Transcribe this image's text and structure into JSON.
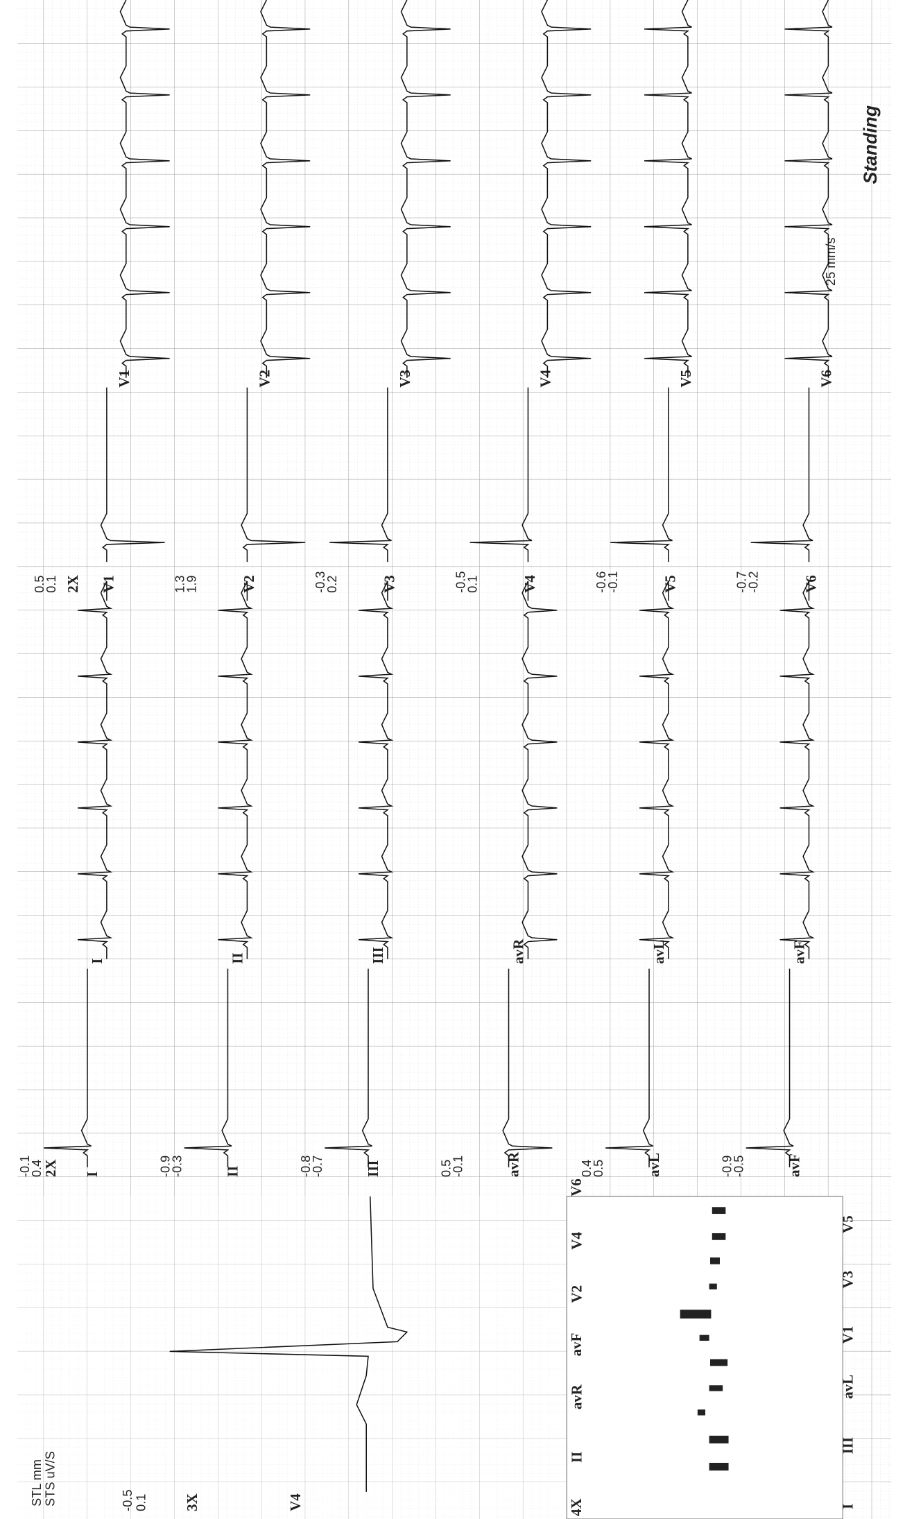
{
  "header": {
    "speed": "25 mm/s",
    "condition": "Standing"
  },
  "summary": {
    "stl_label": "STL mm",
    "sts_label": "STS uV/S",
    "stl": -0.5,
    "sts": 0.1,
    "gain": "3X",
    "lead": "V4"
  },
  "limb_leads": [
    {
      "stl": -0.1,
      "sts": 0.4,
      "gain": "2X",
      "name": "I"
    },
    {
      "stl": -0.9,
      "sts": -0.3,
      "name": "II"
    },
    {
      "stl": -0.8,
      "sts": -0.7,
      "name": "III"
    },
    {
      "stl": 0.5,
      "sts": -0.1,
      "name": "avR"
    },
    {
      "stl": 0.4,
      "sts": 0.5,
      "name": "avL"
    },
    {
      "stl": -0.9,
      "sts": -0.5,
      "name": "avF"
    }
  ],
  "chest_leads": [
    {
      "stl": 0.5,
      "sts": 0.1,
      "gain": "2X",
      "name": "V1"
    },
    {
      "stl": 1.3,
      "sts": 1.9,
      "name": "V2"
    },
    {
      "stl": -0.3,
      "sts": 0.2,
      "name": "V3"
    },
    {
      "stl": -0.5,
      "sts": 0.1,
      "name": "V4"
    },
    {
      "stl": -0.6,
      "sts": -0.1,
      "name": "V5"
    },
    {
      "stl": -0.7,
      "sts": -0.2,
      "name": "V6"
    }
  ],
  "bar_chart": {
    "gain": "4X",
    "top_labels": [
      "II",
      "avR",
      "avF",
      "V2",
      "V4",
      "V6"
    ],
    "bottom_labels": [
      "I",
      "III",
      "avL",
      "V1",
      "V3",
      "V5"
    ]
  }
}
